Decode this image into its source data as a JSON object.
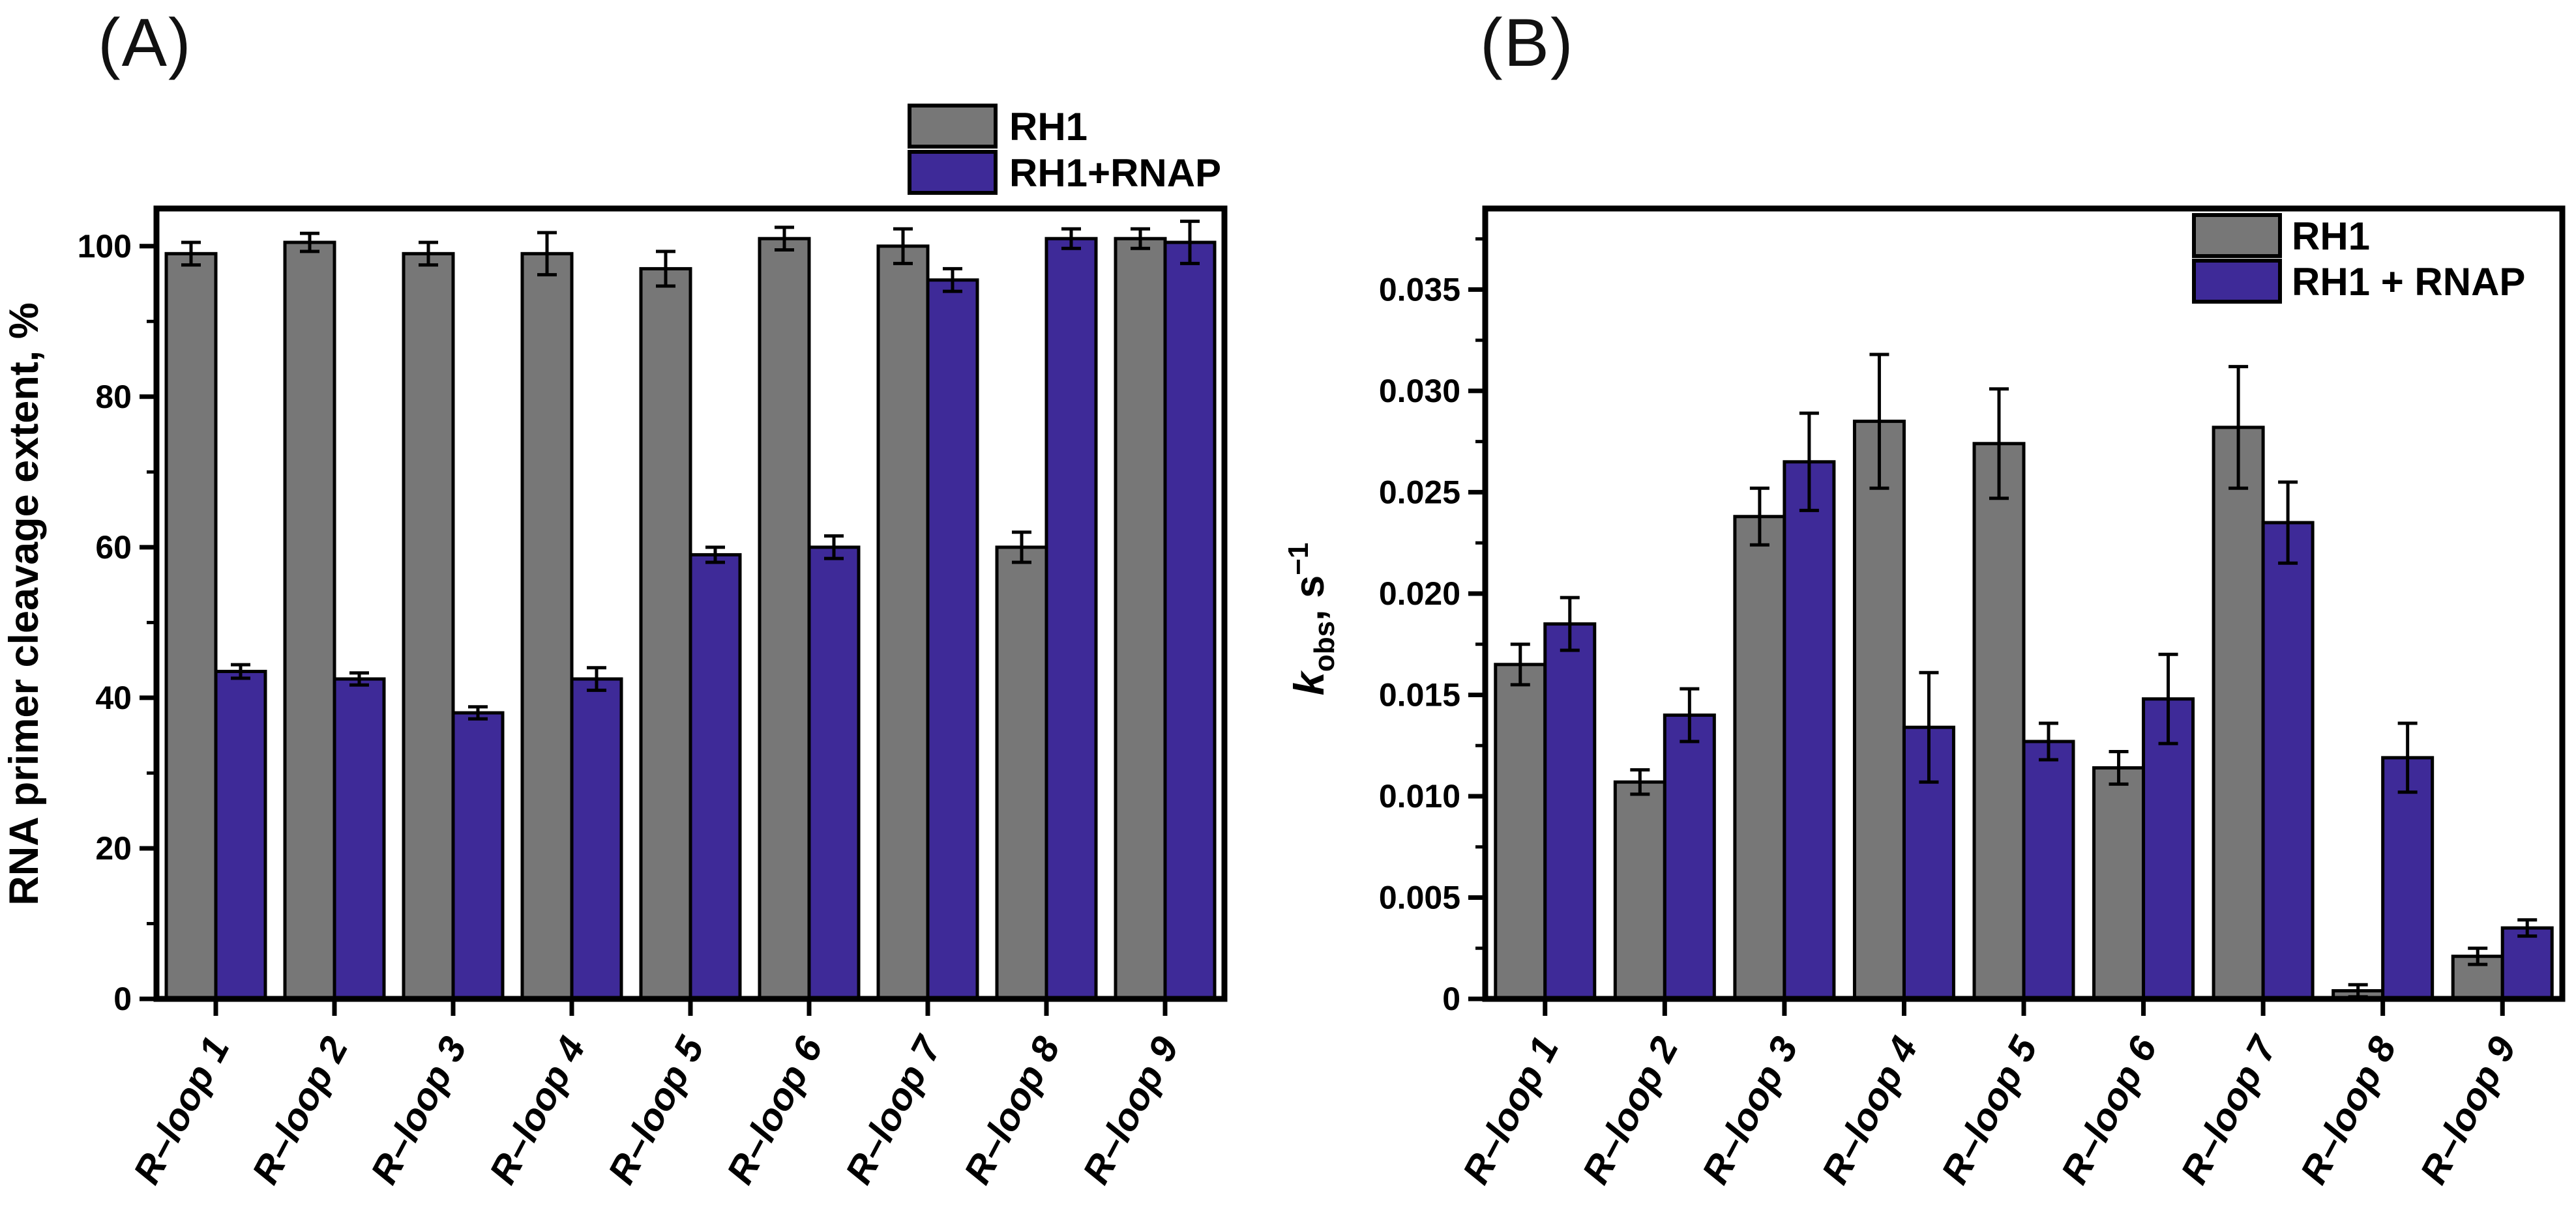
{
  "panels": [
    {
      "label": "(A)"
    },
    {
      "label": "(B)"
    }
  ],
  "colors": {
    "rh1_fill": "#777777",
    "rh1_rnap_fill": "#3E2A98",
    "outline": "#000000",
    "background": "#ffffff"
  },
  "chart_data": [
    {
      "type": "bar",
      "panel": "A",
      "title": "",
      "xlabel": "",
      "ylabel": "RNA primer cleavage extent, %",
      "categories": [
        "R–loop 1",
        "R–loop 2",
        "R–loop 3",
        "R–loop 4",
        "R–loop 5",
        "R–loop 6",
        "R–loop 7",
        "R–loop 8",
        "R–loop 9"
      ],
      "series": [
        {
          "name": "RH1",
          "color": "#777777",
          "values": [
            99,
            100.5,
            99,
            99,
            97,
            101,
            100,
            60,
            101
          ],
          "errors": [
            1.5,
            1.2,
            1.5,
            2.8,
            2.3,
            1.5,
            2.3,
            2.0,
            1.3
          ]
        },
        {
          "name": "RH1+RNAP",
          "color": "#3E2A98",
          "values": [
            43.5,
            42.5,
            38,
            42.5,
            59,
            60,
            95.5,
            101,
            100.5
          ],
          "errors": [
            0.9,
            0.8,
            0.8,
            1.5,
            1.0,
            1.5,
            1.5,
            1.3,
            2.8
          ]
        }
      ],
      "ylim": [
        0,
        105
      ],
      "yticks": [
        0,
        20,
        40,
        60,
        80,
        100
      ],
      "ytick_labels": [
        "0",
        "20",
        "40",
        "60",
        "80",
        "100"
      ],
      "minor_tick_step": 10,
      "grid": false,
      "legend": {
        "items": [
          "RH1",
          "RH1+RNAP"
        ],
        "position": "above-plot-right"
      }
    },
    {
      "type": "bar",
      "panel": "B",
      "title": "",
      "xlabel": "",
      "ylabel": "kobs, s−1",
      "ylabel_parts": {
        "k": "k",
        "sub": "obs",
        "rest": ", s",
        "sup": "−1"
      },
      "categories": [
        "R–loop 1",
        "R–loop 2",
        "R–loop 3",
        "R–loop 4",
        "R–loop 5",
        "R–loop 6",
        "R–loop 7",
        "R–loop 8",
        "R–loop 9"
      ],
      "series": [
        {
          "name": "RH1",
          "color": "#777777",
          "values": [
            0.0165,
            0.0107,
            0.0238,
            0.0285,
            0.0274,
            0.0114,
            0.0282,
            0.0004,
            0.0021
          ],
          "errors": [
            0.001,
            0.0006,
            0.0014,
            0.0033,
            0.0027,
            0.0008,
            0.003,
            0.0003,
            0.0004
          ]
        },
        {
          "name": "RH1 + RNAP",
          "color": "#3E2A98",
          "values": [
            0.0185,
            0.014,
            0.0265,
            0.0134,
            0.0127,
            0.0148,
            0.0235,
            0.0119,
            0.0035
          ],
          "errors": [
            0.0013,
            0.0013,
            0.0024,
            0.0027,
            0.0009,
            0.0022,
            0.002,
            0.0017,
            0.0004
          ]
        }
      ],
      "ylim": [
        0,
        0.039
      ],
      "yticks": [
        0,
        0.005,
        0.01,
        0.015,
        0.02,
        0.025,
        0.03,
        0.035
      ],
      "ytick_labels": [
        "0",
        "0.005",
        "0.010",
        "0.015",
        "0.020",
        "0.025",
        "0.030",
        "0.035"
      ],
      "minor_tick_step": 0.0025,
      "grid": false,
      "legend": {
        "items": [
          "RH1",
          "RH1 + RNAP"
        ],
        "position": "inside-top-right"
      }
    }
  ]
}
